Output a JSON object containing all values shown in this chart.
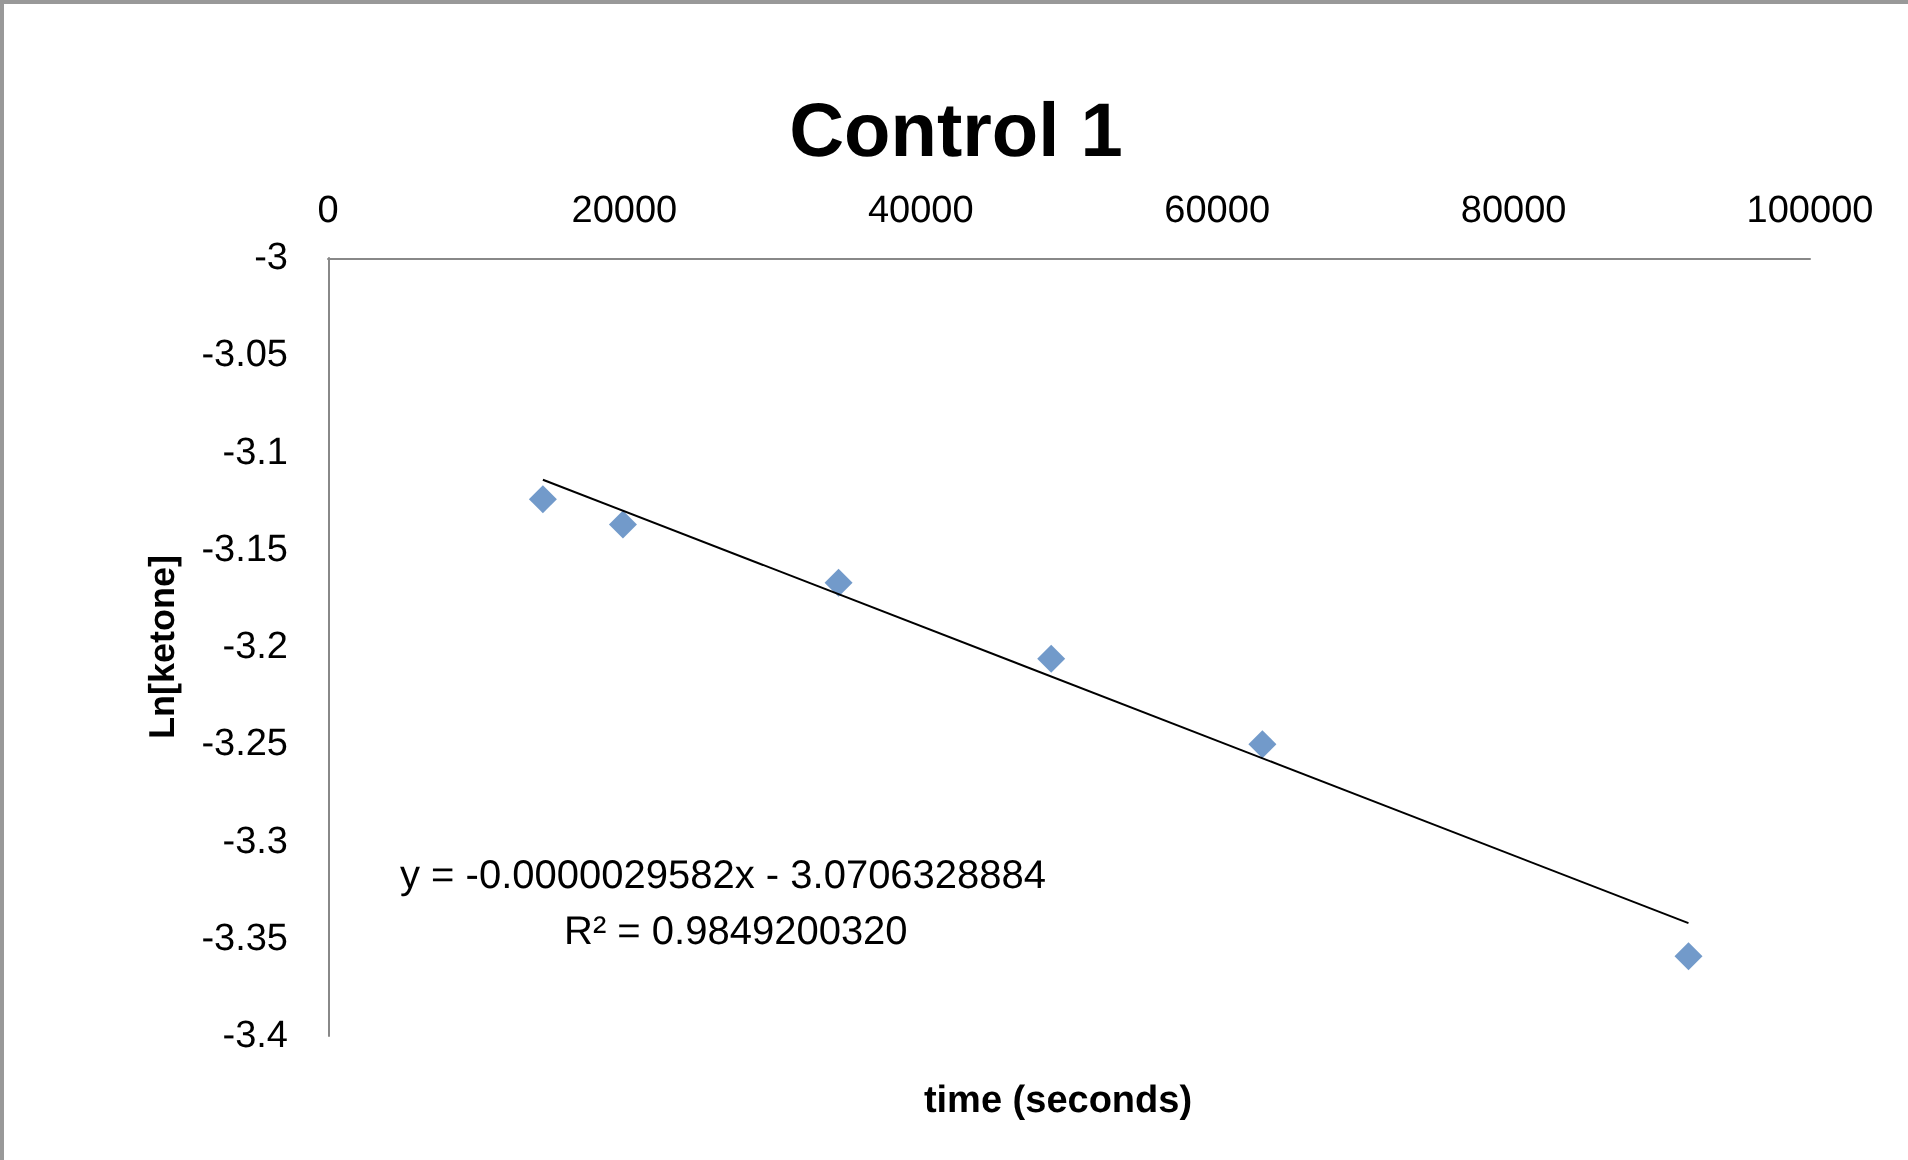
{
  "chart_data": {
    "type": "scatter",
    "title": "Control 1",
    "xlabel": "time (seconds)",
    "ylabel": "Ln[ketone]",
    "x": [
      14500,
      19900,
      34450,
      48800,
      63050,
      91800
    ],
    "series": [
      {
        "color": "#4f81bd",
        "marker": "diamond",
        "values": [
          -3.124,
          -3.137,
          -3.167,
          -3.206,
          -3.25,
          -3.359
        ]
      },
      {
        "type": "line",
        "color": "#000000",
        "marker": "none",
        "x": [
          14500,
          91800
        ],
        "values": [
          -3.114,
          -3.342
        ]
      }
    ],
    "xlim": [
      0,
      100000
    ],
    "xticks": [
      0,
      20000,
      40000,
      60000,
      80000,
      100000
    ],
    "ylim": [
      -3.4,
      -3
    ],
    "yticks": [
      -3.4,
      -3.35,
      -3.3,
      -3.25,
      -3.2,
      -3.15,
      -3.1,
      -3.05,
      -3
    ],
    "grid": false,
    "annotations": [
      "y = -0.0000029582x - 3.0706328884",
      "R² = 0.9849200320"
    ]
  }
}
